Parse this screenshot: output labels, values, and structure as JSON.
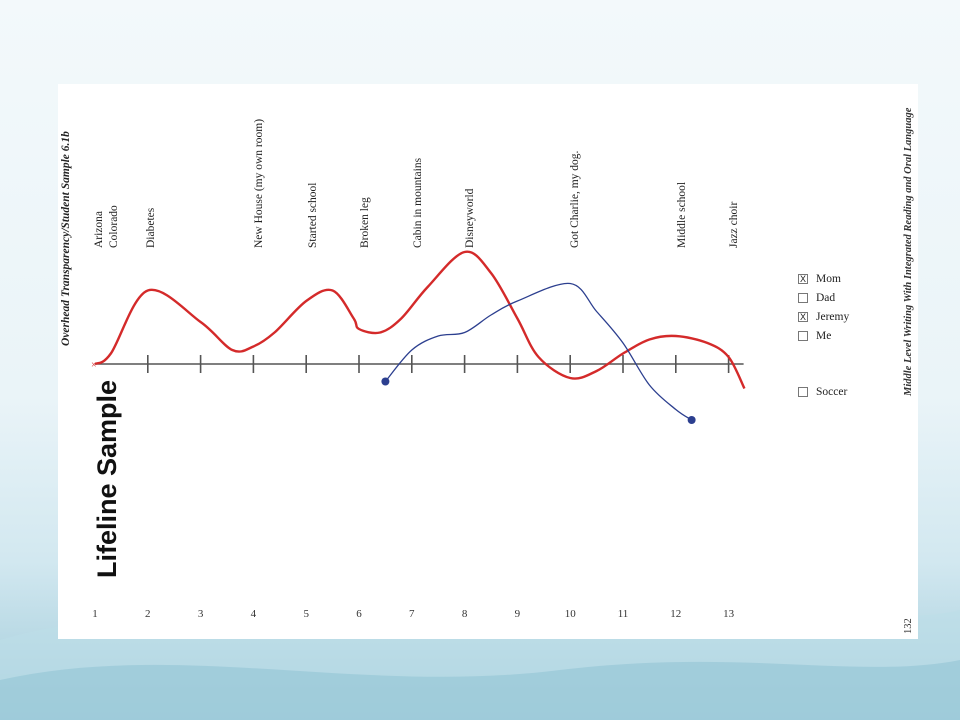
{
  "header": {
    "transparency_label": "Overhead Transparency/Student Sample 6.1b",
    "title": "Lifeline Sample"
  },
  "footer": {
    "book_title": "Middle Level Writing With Integrated Reading and Oral Language",
    "page_number": "132"
  },
  "events": [
    {
      "line1": "Arizona",
      "line2": "Colorado"
    },
    {
      "line1": "Diabetes"
    },
    {
      "line1": "New House (my own room)"
    },
    {
      "line1": "Started school"
    },
    {
      "line1": "Broken leg"
    },
    {
      "line1": "Cabin in mountains"
    },
    {
      "line1": "Disneyworld"
    },
    {
      "line1": "Got Charlie, my dog."
    },
    {
      "line1": "Middle school"
    },
    {
      "line1": "Jazz choir"
    }
  ],
  "ages": [
    "1",
    "2",
    "3",
    "4",
    "5",
    "6",
    "7",
    "8",
    "9",
    "10",
    "11",
    "12",
    "13"
  ],
  "legend": [
    {
      "label": "Mom",
      "mark": "X"
    },
    {
      "label": "Dad",
      "mark": ""
    },
    {
      "label": "Jeremy",
      "mark": "X"
    },
    {
      "label": "Me",
      "mark": ""
    },
    {
      "label": "Soccer",
      "mark": ""
    }
  ],
  "colors": {
    "red_line": "#d42a2a",
    "blue_line": "#2c3f8f",
    "axis": "#555555"
  },
  "chart_data": {
    "type": "line",
    "x_ticks": [
      1,
      2,
      3,
      4,
      5,
      6,
      7,
      8,
      9,
      10,
      11,
      12,
      13
    ],
    "series": [
      {
        "color": "red",
        "x": [
          1,
          1.3,
          2,
          3,
          3.6,
          4,
          4.4,
          5,
          5.5,
          5.9,
          6,
          6.4,
          6.8,
          7.3,
          8,
          8.5,
          9,
          9.4,
          10,
          10.5,
          11,
          11.5,
          12,
          12.6,
          13,
          13.3
        ],
        "y": [
          0,
          0.3,
          2.1,
          1.2,
          0.4,
          0.5,
          0.9,
          1.8,
          2.1,
          1.3,
          1,
          0.9,
          1.3,
          2.2,
          3.2,
          2.6,
          1.3,
          0.2,
          -0.4,
          -0.2,
          0.3,
          0.7,
          0.8,
          0.6,
          0.2,
          -0.7
        ]
      },
      {
        "color": "blue",
        "x": [
          6.5,
          7,
          7.5,
          8,
          8.5,
          9,
          10,
          10.5,
          11,
          11.5,
          12,
          12.3
        ],
        "y": [
          -0.5,
          0.4,
          0.8,
          0.9,
          1.4,
          1.8,
          2.3,
          1.5,
          0.6,
          -0.6,
          -1.3,
          -1.6
        ]
      }
    ]
  }
}
